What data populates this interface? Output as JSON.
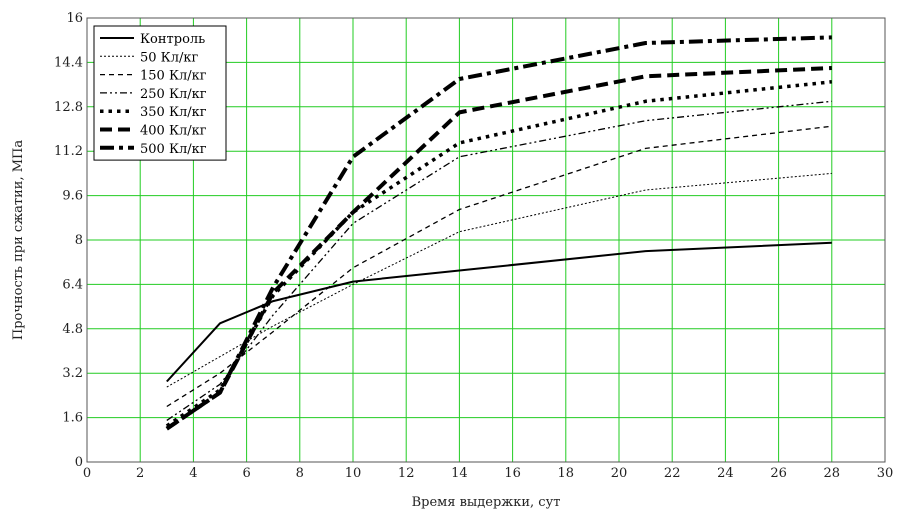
{
  "chart_data": {
    "type": "line",
    "title": "",
    "xlabel": "Время выдержки, сут",
    "ylabel": "Прочность при сжатии, МПа",
    "xlim": [
      0,
      30
    ],
    "ylim": [
      0,
      16
    ],
    "x_ticks": [
      "0",
      "2",
      "4",
      "6",
      "8",
      "10",
      "12",
      "14",
      "16",
      "18",
      "20",
      "22",
      "24",
      "26",
      "28",
      "30"
    ],
    "y_ticks": [
      "0",
      "1.6",
      "3.2",
      "4.8",
      "6.4",
      "8",
      "9.6",
      "11.2",
      "12.8",
      "14.4",
      "16"
    ],
    "grid": true,
    "grid_color": "#22cc22",
    "legend_position": "top-left",
    "series": [
      {
        "name": "Контроль",
        "x": [
          3,
          5,
          7,
          10,
          14,
          21,
          28
        ],
        "values": [
          2.9,
          5.0,
          5.8,
          6.5,
          6.9,
          7.6,
          7.9
        ]
      },
      {
        "name": "50 Кл/кг",
        "x": [
          3,
          5,
          7,
          10,
          14,
          21,
          28
        ],
        "values": [
          2.7,
          3.8,
          4.9,
          6.4,
          8.3,
          9.8,
          10.4
        ]
      },
      {
        "name": "150 Кл/кг",
        "x": [
          3,
          5,
          7,
          10,
          14,
          21,
          28
        ],
        "values": [
          2.0,
          3.2,
          4.7,
          7.0,
          9.1,
          11.3,
          12.1
        ]
      },
      {
        "name": "250 Кл/кг",
        "x": [
          3,
          5,
          7,
          10,
          14,
          21,
          28
        ],
        "values": [
          1.5,
          2.8,
          5.3,
          8.6,
          11.0,
          12.3,
          13.0
        ]
      },
      {
        "name": "350 Кл/кг",
        "x": [
          3,
          5,
          7,
          10,
          14,
          21,
          28
        ],
        "values": [
          1.3,
          2.6,
          6.0,
          9.0,
          11.5,
          13.0,
          13.7
        ]
      },
      {
        "name": "400 Кл/кг",
        "x": [
          3,
          5,
          7,
          10,
          14,
          21,
          28
        ],
        "values": [
          1.2,
          2.5,
          6.1,
          9.0,
          12.6,
          13.9,
          14.2
        ]
      },
      {
        "name": "500 Кл/кг",
        "x": [
          3,
          5,
          7,
          10,
          14,
          21,
          28
        ],
        "values": [
          1.2,
          2.5,
          6.3,
          11.0,
          13.8,
          15.1,
          15.3
        ]
      }
    ],
    "series_colors": [
      "#000000",
      "#000000",
      "#000000",
      "#000000",
      "#000000",
      "#000000",
      "#000000"
    ],
    "series_styles": [
      "solid",
      "dotted",
      "dashed",
      "dash-dot-dot",
      "dots-thick",
      "dashed-thick",
      "dash-dot-thick"
    ]
  }
}
